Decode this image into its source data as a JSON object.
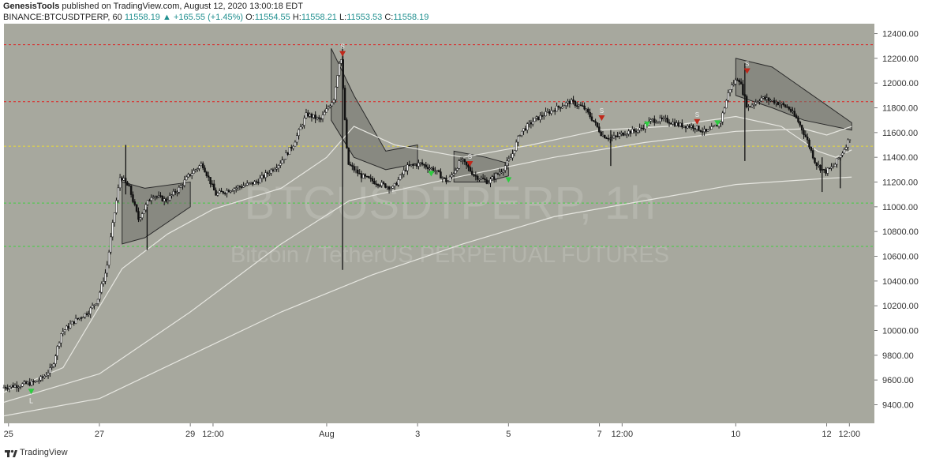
{
  "header": {
    "publisher": "GenesisTools",
    "published_text": "published on TradingView.com, August 12, 2020 13:00:18 EDT",
    "symbol": "BINANCE:BTCUSDTPERP, 60",
    "last": "11558.19",
    "change": "+165.55 (+1.45%)",
    "o_label": "O:",
    "o": "11554.55",
    "h_label": "H:",
    "h": "11558.21",
    "l_label": "L:",
    "l": "11553.53",
    "c_label": "C:",
    "c": "11558.19"
  },
  "watermark": {
    "symbol": "BTCUSDTPERP, 1h",
    "description": "Bitcoin / TetherUS PERPETUAL FUTURES"
  },
  "footer": {
    "brand": "TradingView"
  },
  "colors": {
    "plot_bg": "#a7a89e",
    "resistance": "#e02020",
    "pivot": "#e8d93a",
    "support": "#3fcf3f",
    "buy_marker": "#2ecc40",
    "sell_marker": "#c0281b",
    "candle": "#ffffff"
  },
  "chart_data": {
    "type": "candlestick",
    "timeframe": "1h",
    "ylim": [
      9250,
      12480
    ],
    "y_ticks": [
      9400,
      9600,
      9800,
      10000,
      10200,
      10400,
      10600,
      10800,
      11000,
      11200,
      11400,
      11600,
      11800,
      12000,
      12200,
      12400
    ],
    "x_ticks": [
      {
        "label": "25",
        "t": 0
      },
      {
        "label": "27",
        "t": 2
      },
      {
        "label": "29",
        "t": 4
      },
      {
        "label": "12:00",
        "t": 4.5
      },
      {
        "label": "Aug",
        "t": 7
      },
      {
        "label": "3",
        "t": 9
      },
      {
        "label": "5",
        "t": 11
      },
      {
        "label": "7",
        "t": 13
      },
      {
        "label": "12:00",
        "t": 13.5
      },
      {
        "label": "10",
        "t": 16
      },
      {
        "label": "12",
        "t": 18
      },
      {
        "label": "12:00",
        "t": 18.5
      }
    ],
    "t_range": [
      -0.1,
      19.05
    ],
    "horizontal_levels": [
      {
        "name": "resistance-2",
        "value": 12310,
        "color": "#e02020"
      },
      {
        "name": "resistance-1",
        "value": 11850,
        "color": "#e02020"
      },
      {
        "name": "pivot",
        "value": 11490,
        "color": "#e8d93a"
      },
      {
        "name": "support-1",
        "value": 11030,
        "color": "#3fcf3f"
      },
      {
        "name": "support-2",
        "value": 10680,
        "color": "#3fcf3f"
      }
    ],
    "price_path": [
      [
        -0.1,
        9540
      ],
      [
        0.3,
        9560
      ],
      [
        0.6,
        9580
      ],
      [
        0.8,
        9620
      ],
      [
        1.0,
        9700
      ],
      [
        1.2,
        9980
      ],
      [
        1.5,
        10080
      ],
      [
        1.8,
        10150
      ],
      [
        2.0,
        10250
      ],
      [
        2.2,
        10500
      ],
      [
        2.35,
        10900
      ],
      [
        2.5,
        11250
      ],
      [
        2.7,
        11150
      ],
      [
        2.9,
        10900
      ],
      [
        3.2,
        11100
      ],
      [
        3.5,
        11050
      ],
      [
        3.8,
        11150
      ],
      [
        4.0,
        11250
      ],
      [
        4.3,
        11350
      ],
      [
        4.6,
        11100
      ],
      [
        5.0,
        11150
      ],
      [
        5.5,
        11200
      ],
      [
        6.0,
        11350
      ],
      [
        6.3,
        11500
      ],
      [
        6.6,
        11750
      ],
      [
        6.9,
        11700
      ],
      [
        7.2,
        11880
      ],
      [
        7.35,
        12250
      ],
      [
        7.5,
        11350
      ],
      [
        7.8,
        11250
      ],
      [
        8.1,
        11200
      ],
      [
        8.5,
        11150
      ],
      [
        8.8,
        11320
      ],
      [
        9.1,
        11350
      ],
      [
        9.4,
        11300
      ],
      [
        9.7,
        11200
      ],
      [
        10.0,
        11380
      ],
      [
        10.3,
        11250
      ],
      [
        10.6,
        11200
      ],
      [
        10.9,
        11300
      ],
      [
        11.1,
        11400
      ],
      [
        11.3,
        11600
      ],
      [
        11.6,
        11700
      ],
      [
        12.0,
        11780
      ],
      [
        12.4,
        11850
      ],
      [
        12.7,
        11800
      ],
      [
        12.9,
        11700
      ],
      [
        13.1,
        11580
      ],
      [
        13.3,
        11550
      ],
      [
        13.6,
        11600
      ],
      [
        13.9,
        11620
      ],
      [
        14.2,
        11700
      ],
      [
        14.5,
        11700
      ],
      [
        14.8,
        11660
      ],
      [
        15.1,
        11650
      ],
      [
        15.4,
        11600
      ],
      [
        15.7,
        11680
      ],
      [
        15.9,
        11950
      ],
      [
        16.1,
        12050
      ],
      [
        16.3,
        11800
      ],
      [
        16.6,
        11880
      ],
      [
        16.9,
        11850
      ],
      [
        17.2,
        11800
      ],
      [
        17.4,
        11700
      ],
      [
        17.6,
        11550
      ],
      [
        17.8,
        11350
      ],
      [
        18.0,
        11280
      ],
      [
        18.2,
        11330
      ],
      [
        18.4,
        11450
      ],
      [
        18.55,
        11560
      ]
    ],
    "spikes": [
      {
        "t": 2.58,
        "low": 11100,
        "high": 11500
      },
      {
        "t": 3.05,
        "low": 10650,
        "high": 11000
      },
      {
        "t": 7.35,
        "low": 10490,
        "high": 12290
      },
      {
        "t": 13.25,
        "low": 11330,
        "high": 11620
      },
      {
        "t": 16.2,
        "low": 11370,
        "high": 12160
      },
      {
        "t": 17.9,
        "low": 11120,
        "high": 11400
      },
      {
        "t": 18.3,
        "low": 11150,
        "high": 11400
      }
    ],
    "moving_averages": [
      {
        "name": "ma-long",
        "points": [
          [
            -0.1,
            9310
          ],
          [
            2,
            9450
          ],
          [
            4,
            9800
          ],
          [
            6,
            10150
          ],
          [
            8,
            10450
          ],
          [
            10,
            10700
          ],
          [
            12,
            10920
          ],
          [
            14,
            11050
          ],
          [
            16,
            11180
          ],
          [
            18,
            11230
          ],
          [
            18.55,
            11240
          ]
        ]
      },
      {
        "name": "ma-mid",
        "points": [
          [
            -0.1,
            9420
          ],
          [
            2,
            9650
          ],
          [
            4,
            10150
          ],
          [
            6,
            10700
          ],
          [
            7.5,
            11050
          ],
          [
            10,
            11250
          ],
          [
            12,
            11400
          ],
          [
            14,
            11520
          ],
          [
            16,
            11610
          ],
          [
            17.5,
            11630
          ],
          [
            18,
            11580
          ],
          [
            18.55,
            11650
          ]
        ]
      },
      {
        "name": "ma-short",
        "points": [
          [
            -0.1,
            9500
          ],
          [
            1.2,
            9700
          ],
          [
            2.5,
            10500
          ],
          [
            3.5,
            10780
          ],
          [
            4.5,
            10980
          ],
          [
            6,
            11150
          ],
          [
            7,
            11400
          ],
          [
            7.6,
            11650
          ],
          [
            8.5,
            11500
          ],
          [
            10,
            11400
          ],
          [
            11.5,
            11500
          ],
          [
            13,
            11620
          ],
          [
            14.5,
            11650
          ],
          [
            16,
            11730
          ],
          [
            17,
            11650
          ],
          [
            17.8,
            11450
          ],
          [
            18.2,
            11400
          ],
          [
            18.55,
            11460
          ]
        ]
      }
    ],
    "bands": [
      {
        "name": "band-1",
        "upper": [
          [
            2.5,
            11200
          ],
          [
            3.0,
            11150
          ],
          [
            4.0,
            11200
          ]
        ],
        "lower": [
          [
            2.5,
            10700
          ],
          [
            3.0,
            10750
          ],
          [
            4.0,
            11000
          ]
        ]
      },
      {
        "name": "band-2",
        "upper": [
          [
            7.1,
            12280
          ],
          [
            7.6,
            11900
          ],
          [
            8.3,
            11450
          ],
          [
            9.0,
            11500
          ]
        ],
        "lower": [
          [
            7.1,
            11700
          ],
          [
            7.6,
            11400
          ],
          [
            8.3,
            11300
          ],
          [
            9.0,
            11350
          ]
        ]
      },
      {
        "name": "band-3",
        "upper": [
          [
            9.8,
            11450
          ],
          [
            10.5,
            11400
          ],
          [
            11.0,
            11350
          ]
        ],
        "lower": [
          [
            9.8,
            11200
          ],
          [
            10.5,
            11200
          ],
          [
            11.0,
            11250
          ]
        ]
      },
      {
        "name": "band-4",
        "upper": [
          [
            16.0,
            12200
          ],
          [
            16.8,
            12130
          ],
          [
            17.5,
            11950
          ],
          [
            18.55,
            11680
          ]
        ],
        "lower": [
          [
            16.0,
            11900
          ],
          [
            16.8,
            11800
          ],
          [
            17.5,
            11700
          ],
          [
            18.55,
            11620
          ]
        ]
      }
    ],
    "signals": [
      {
        "type": "buy",
        "t": 0.5,
        "price": 9510,
        "label": "L"
      },
      {
        "type": "sell",
        "t": 7.35,
        "price": 12240,
        "label": "S"
      },
      {
        "type": "buy",
        "t": 9.3,
        "price": 11270,
        "label": ""
      },
      {
        "type": "sell",
        "t": 10.15,
        "price": 11350,
        "label": "S"
      },
      {
        "type": "buy",
        "t": 11.0,
        "price": 11220,
        "label": ""
      },
      {
        "type": "sell",
        "t": 13.05,
        "price": 11720,
        "label": "S"
      },
      {
        "type": "buy",
        "t": 14.05,
        "price": 11670,
        "label": ""
      },
      {
        "type": "sell",
        "t": 15.15,
        "price": 11690,
        "label": "S"
      },
      {
        "type": "buy",
        "t": 15.6,
        "price": 11680,
        "label": ""
      },
      {
        "type": "sell",
        "t": 16.25,
        "price": 12100,
        "label": "S"
      }
    ]
  }
}
